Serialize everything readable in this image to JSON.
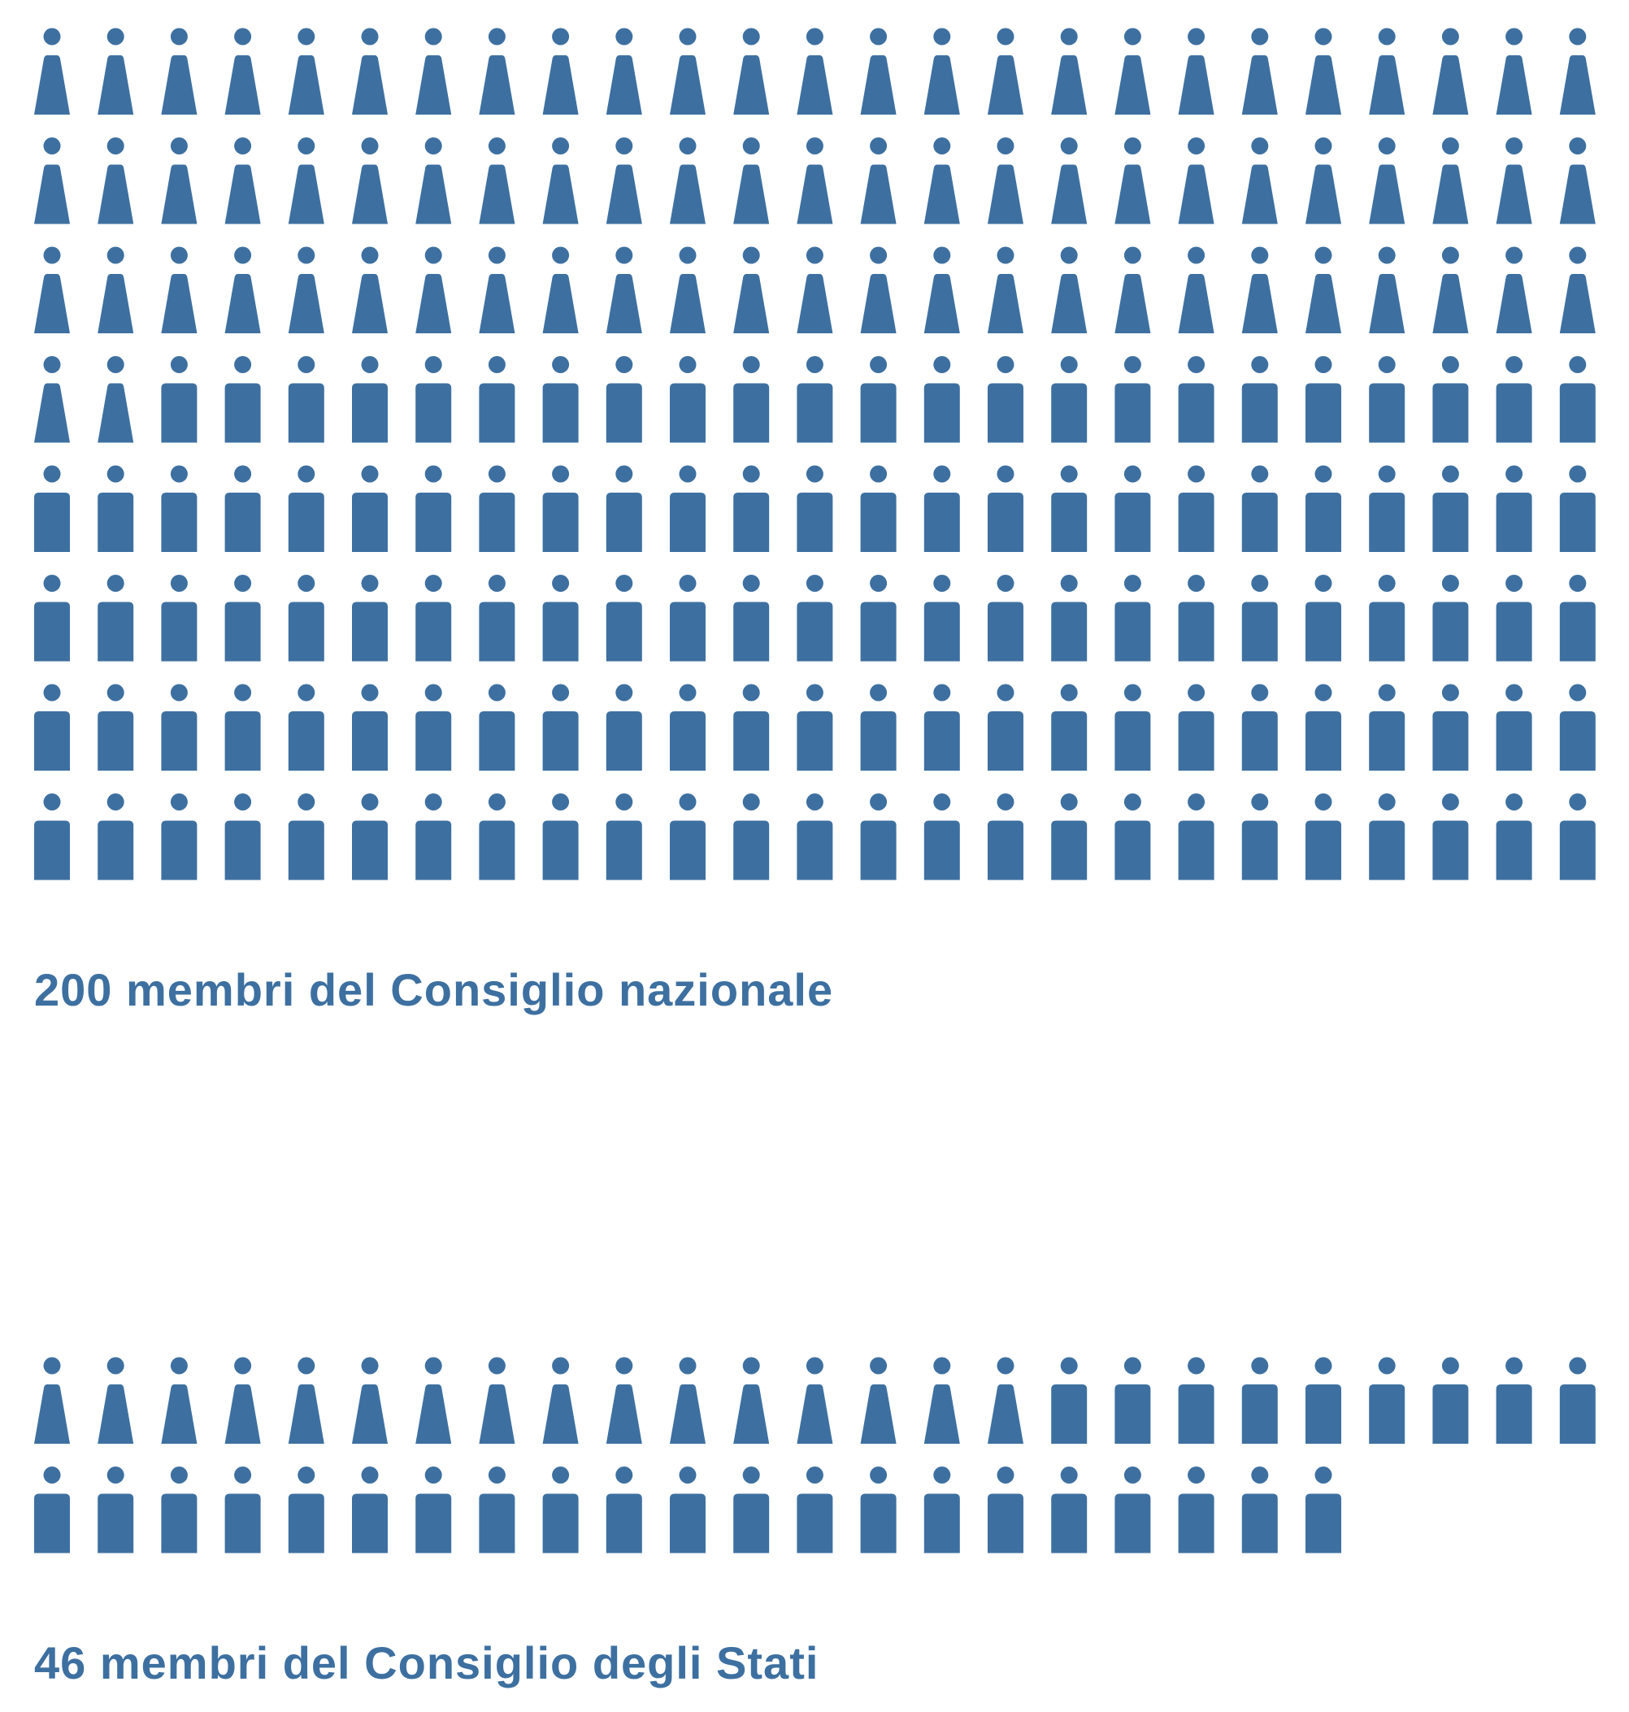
{
  "colors": {
    "figure": "#3d70a0",
    "caption": "#3d70a0",
    "background": "#ffffff"
  },
  "icons": {
    "female": "woman-figure-icon",
    "male": "man-figure-icon"
  },
  "chart_data": [
    {
      "type": "pictogram",
      "name": "consiglio-nazionale",
      "total": 200,
      "per_row": 25,
      "groups": [
        {
          "icon": "female",
          "count": 77
        },
        {
          "icon": "male",
          "count": 123
        }
      ],
      "caption": "200 membri del Consiglio nazionale"
    },
    {
      "type": "pictogram",
      "name": "consiglio-degli-stati",
      "total": 46,
      "per_row": 25,
      "groups": [
        {
          "icon": "female",
          "count": 16
        },
        {
          "icon": "male",
          "count": 30
        }
      ],
      "caption": "46 membri del Consiglio degli Stati"
    }
  ]
}
